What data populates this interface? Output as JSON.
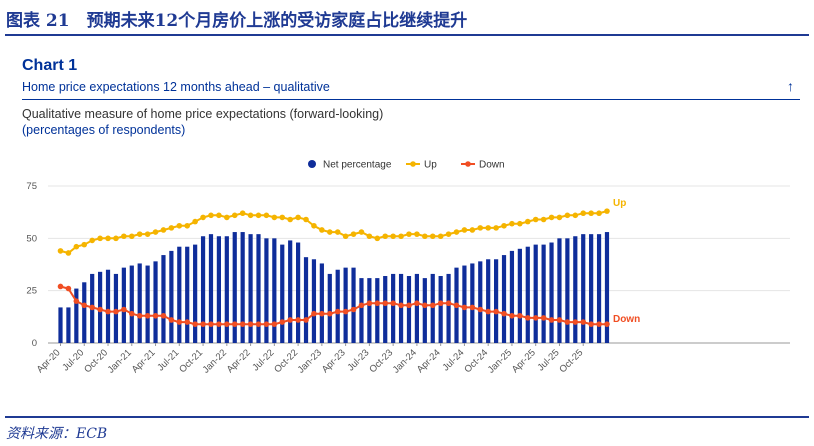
{
  "figure_title": "图表 21　预期未来12个月房价上涨的受访家庭占比继续提升",
  "chart_number": "Chart 1",
  "chart_subtitle": "Home price expectations 12 months ahead – qualitative",
  "description_line1": "Qualitative measure of home price expectations (forward-looking)",
  "description_line2": "(percentages of respondents)",
  "source": "资料来源：ECB",
  "colors": {
    "net": "#0f2d9a",
    "up": "#f5b400",
    "down": "#f04e23",
    "title": "#1f3a93",
    "ecb_blue": "#003299"
  },
  "chart_data": {
    "type": "bar+line",
    "ylim": [
      0,
      75
    ],
    "yticks": [
      0,
      25,
      50,
      75
    ],
    "xtick_labels": [
      "Apr-20",
      "Jul-20",
      "Oct-20",
      "Jan-21",
      "Apr-21",
      "Jul-21",
      "Oct-21",
      "Jan-22",
      "Apr-22",
      "Jul-22",
      "Oct-22",
      "Jan-23",
      "Apr-23",
      "Jul-23",
      "Oct-23",
      "Jan-24",
      "Apr-24",
      "Jul-24",
      "Oct-24",
      "Jan-25",
      "Apr-25",
      "Jul-25",
      "Oct-25"
    ],
    "x_start": "Apr-20",
    "legend": [
      "Net percentage",
      "Up",
      "Down"
    ],
    "legend_position": "top-center",
    "end_labels": {
      "up": "Up",
      "down": "Down"
    },
    "series": [
      {
        "name": "Net percentage",
        "type": "bar",
        "values": [
          17,
          17,
          26,
          29,
          33,
          34,
          35,
          33,
          36,
          37,
          38,
          37,
          39,
          42,
          44,
          46,
          46,
          47,
          51,
          52,
          51,
          51,
          53,
          53,
          52,
          52,
          50,
          50,
          47,
          49,
          48,
          41,
          40,
          38,
          33,
          35,
          36,
          36,
          31,
          31,
          31,
          32,
          33,
          33,
          32,
          33,
          31,
          33,
          32,
          33,
          36,
          37,
          38,
          39,
          40,
          40,
          42,
          44,
          45,
          46,
          47,
          47,
          48,
          50,
          50,
          51,
          52,
          52,
          52,
          53
        ]
      },
      {
        "name": "Up",
        "type": "line",
        "values": [
          44,
          43,
          46,
          47,
          49,
          50,
          50,
          50,
          51,
          51,
          52,
          52,
          53,
          54,
          55,
          56,
          56,
          58,
          60,
          61,
          61,
          60,
          61,
          62,
          61,
          61,
          61,
          60,
          60,
          59,
          60,
          59,
          56,
          54,
          53,
          53,
          51,
          52,
          53,
          51,
          50,
          51,
          51,
          51,
          52,
          52,
          51,
          51,
          51,
          52,
          53,
          54,
          54,
          55,
          55,
          55,
          56,
          57,
          57,
          58,
          59,
          59,
          60,
          60,
          61,
          61,
          62,
          62,
          62,
          63
        ]
      },
      {
        "name": "Down",
        "type": "line",
        "values": [
          27,
          26,
          20,
          18,
          17,
          16,
          15,
          15,
          16,
          14,
          13,
          13,
          13,
          13,
          11,
          10,
          10,
          9,
          9,
          9,
          9,
          9,
          9,
          9,
          9,
          9,
          9,
          9,
          10,
          11,
          11,
          11,
          14,
          14,
          14,
          15,
          15,
          16,
          18,
          19,
          19,
          19,
          19,
          18,
          18,
          19,
          18,
          18,
          19,
          19,
          18,
          17,
          17,
          16,
          15,
          15,
          14,
          13,
          13,
          12,
          12,
          12,
          11,
          11,
          10,
          10,
          10,
          9,
          9,
          9
        ]
      }
    ]
  }
}
